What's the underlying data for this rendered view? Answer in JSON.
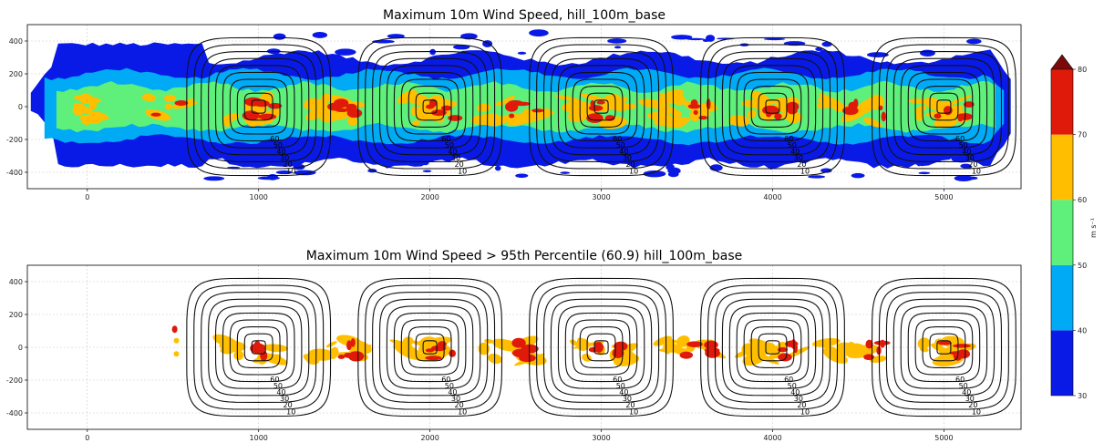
{
  "chart_data": {
    "type": "filled-contour",
    "panels": [
      {
        "title": "Maximum 10m Wind Speed, hill_100m_base",
        "xlim": [
          -350,
          5450
        ],
        "ylim": [
          -500,
          500
        ],
        "xticks": [
          0,
          1000,
          2000,
          3000,
          4000,
          5000
        ],
        "yticks": [
          -400,
          -200,
          0,
          200,
          400
        ],
        "grid": true,
        "field": "all"
      },
      {
        "title": "Maximum 10m Wind Speed > 95th Percentile (60.9) hill_100m_base",
        "xlim": [
          -350,
          5450
        ],
        "ylim": [
          -500,
          500
        ],
        "xticks": [
          0,
          1000,
          2000,
          3000,
          4000,
          5000
        ],
        "yticks": [
          -400,
          -200,
          0,
          200,
          400
        ],
        "grid": true,
        "field": "above-threshold"
      }
    ],
    "hills": {
      "centers_x": [
        1000,
        2000,
        3000,
        4000,
        5000
      ],
      "center_y": 0,
      "contour_levels": [
        10,
        20,
        30,
        40,
        50,
        60,
        70,
        80,
        90,
        100
      ]
    },
    "colorbar": {
      "label": "m s$^{-1}$",
      "levels": [
        30,
        40,
        50,
        60,
        70,
        80
      ],
      "extend": "max",
      "colors": [
        "#0a1ae6",
        "#00aaf5",
        "#5ef07a",
        "#ffbf00",
        "#e01a0a",
        "#7a0a0a"
      ]
    }
  }
}
